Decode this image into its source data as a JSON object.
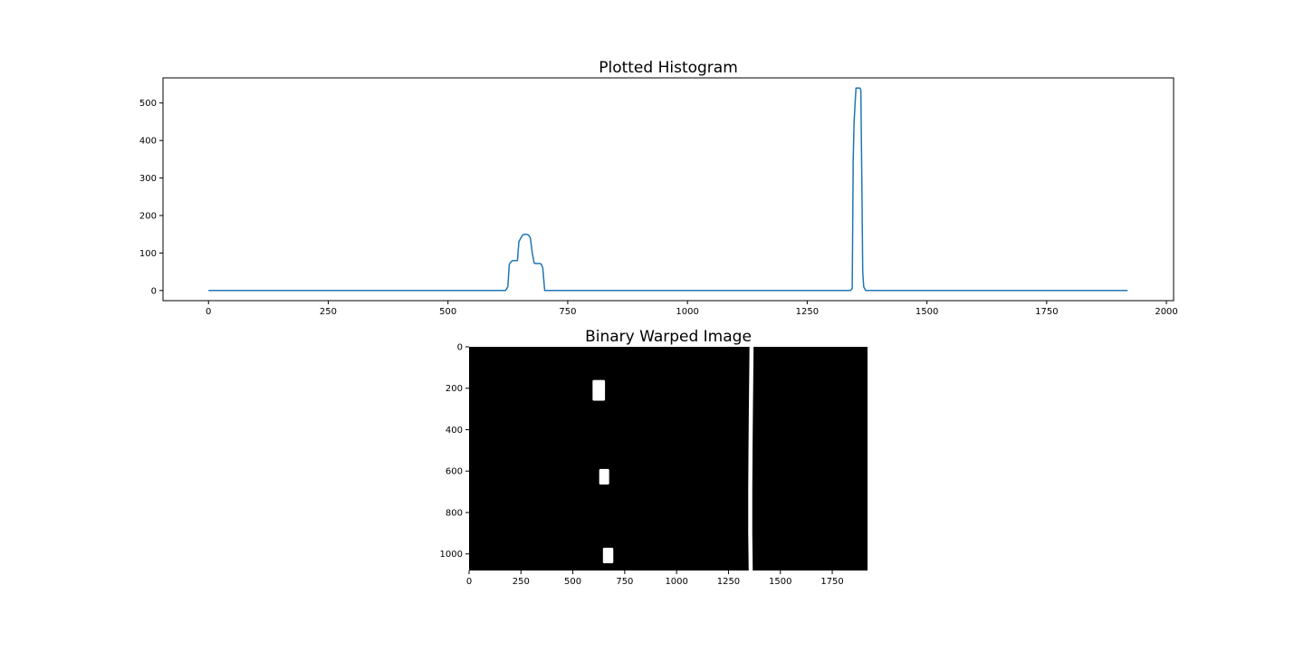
{
  "chart_data": [
    {
      "type": "line",
      "title": "Plotted Histogram",
      "xlabel": "",
      "ylabel": "",
      "xlim": [
        -95,
        2015
      ],
      "ylim": [
        -27,
        567
      ],
      "xticks": [
        0,
        250,
        500,
        750,
        1000,
        1250,
        1500,
        1750,
        2000
      ],
      "yticks": [
        0,
        100,
        200,
        300,
        400,
        500
      ],
      "grid": false,
      "legend": "none",
      "series": [
        {
          "color": "#1f77b4",
          "x": [
            0,
            620,
            625,
            628,
            632,
            636,
            640,
            645,
            648,
            652,
            656,
            660,
            664,
            668,
            672,
            676,
            680,
            684,
            688,
            692,
            695,
            698,
            702,
            705,
            709,
            713,
            1340,
            1344,
            1346,
            1348,
            1350,
            1352,
            1356,
            1360,
            1362,
            1364,
            1366,
            1368,
            1372,
            1919
          ],
          "y": [
            0,
            0,
            10,
            70,
            77,
            80,
            80,
            80,
            130,
            140,
            148,
            150,
            150,
            148,
            140,
            100,
            73,
            72,
            72,
            72,
            70,
            60,
            0,
            0,
            0,
            0,
            0,
            5,
            350,
            450,
            500,
            540,
            540,
            540,
            535,
            300,
            50,
            10,
            0,
            0
          ]
        }
      ]
    },
    {
      "type": "heatmap",
      "title": "Binary Warped Image",
      "colors": {
        "background": "#000000",
        "foreground": "#ffffff"
      },
      "xticks": [
        0,
        250,
        500,
        750,
        1000,
        1250,
        1500,
        1750
      ],
      "yticks": [
        0,
        200,
        400,
        600,
        800,
        1000
      ],
      "xlim": [
        0,
        1920
      ],
      "ylim": [
        1080,
        0
      ],
      "lane_blobs": [
        {
          "x0": 595,
          "x1": 655,
          "y0": 160,
          "y1": 260
        },
        {
          "x0": 627,
          "x1": 675,
          "y0": 590,
          "y1": 665
        },
        {
          "x0": 645,
          "x1": 695,
          "y0": 970,
          "y1": 1045
        }
      ],
      "lane_line": {
        "x": [
          1361,
          1360,
          1358,
          1356,
          1355,
          1355,
          1356,
          1357
        ],
        "y": [
          0,
          100,
          300,
          500,
          700,
          900,
          1000,
          1080
        ]
      }
    }
  ]
}
